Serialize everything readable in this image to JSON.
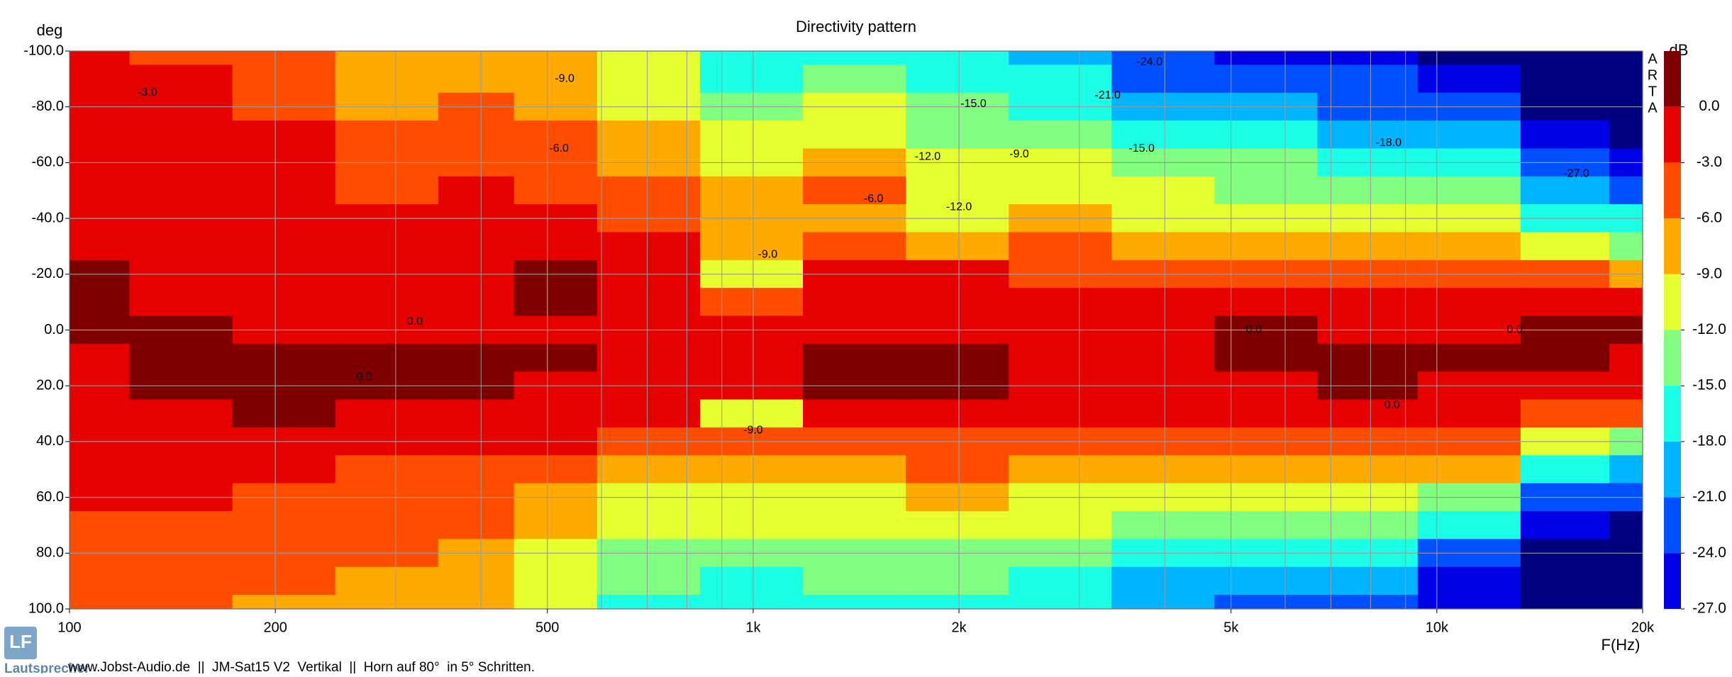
{
  "chart_data": {
    "type": "contour",
    "title": "Directivity pattern",
    "x_label": "F(Hz)",
    "y_label": "deg",
    "x_log": true,
    "xlim": [
      100,
      20000
    ],
    "xticks": [
      100,
      200,
      500,
      {
        "value": 1000,
        "label": "1k"
      },
      {
        "value": 2000,
        "label": "2k"
      },
      {
        "value": 5000,
        "label": "5k"
      },
      {
        "value": 10000,
        "label": "10k"
      },
      {
        "value": 20000,
        "label": "20k"
      }
    ],
    "x_minor_ticks": [
      300,
      400,
      600,
      700,
      800,
      900,
      3000,
      4000,
      6000,
      7000,
      8000,
      9000
    ],
    "ylim": [
      -100,
      100
    ],
    "y_inverted": true,
    "yticks": [
      {
        "value": -100,
        "label": "-100.0"
      },
      {
        "value": -80,
        "label": "-80.0"
      },
      {
        "value": -60,
        "label": "-60.0"
      },
      {
        "value": -40,
        "label": "-40.0"
      },
      {
        "value": -20,
        "label": "-20.0"
      },
      {
        "value": 0,
        "label": "0.0"
      },
      {
        "value": 20,
        "label": "20.0"
      },
      {
        "value": 40,
        "label": "40.0"
      },
      {
        "value": 60,
        "label": "60.0"
      },
      {
        "value": 80,
        "label": "80.0"
      },
      {
        "value": 100,
        "label": "100.0"
      }
    ],
    "grid": true,
    "x": [
      100,
      150,
      200,
      300,
      400,
      500,
      700,
      1000,
      1400,
      2000,
      2800,
      4000,
      5600,
      8000,
      11000,
      16000,
      20000
    ],
    "y": [
      -100,
      -90,
      -80,
      -70,
      -60,
      -50,
      -40,
      -30,
      -20,
      -10,
      0,
      10,
      20,
      30,
      40,
      50,
      60,
      70,
      80,
      90,
      100
    ],
    "z": [
      [
        -2.5,
        -2,
        -2,
        -1.5,
        -1.5,
        -1,
        -1,
        -1,
        0.5,
        0.5,
        0.5,
        -0.5,
        -1,
        -1,
        -1.5,
        -2,
        -2.5,
        -4,
        -4,
        -4.5,
        -4.5
      ],
      [
        -3.5,
        -3,
        -2.5,
        -2,
        -2,
        -1.5,
        -1.5,
        -1,
        -1,
        -0.5,
        0.5,
        0.5,
        0.5,
        -0.5,
        -1,
        -1.5,
        -2,
        -4,
        -4,
        -4.5,
        -5
      ],
      [
        -4,
        -3.5,
        -3.2,
        -3,
        -2.5,
        -2,
        -1.5,
        -1,
        -1,
        -0.5,
        -0.5,
        0.5,
        1,
        0.5,
        -1,
        -2,
        -3.5,
        -4,
        -4.5,
        -5,
        -7
      ],
      [
        -7,
        -6.5,
        -6.5,
        -5,
        -4,
        -3.5,
        -2,
        -1.5,
        -1,
        -1,
        -0.5,
        0.5,
        0.5,
        -0.5,
        -1.5,
        -3.5,
        -4,
        -4.5,
        -5,
        -6.5,
        -7
      ],
      [
        -7,
        -7,
        -6,
        -4,
        -3.5,
        -2.5,
        -2.5,
        -2,
        -1.5,
        -1,
        -0.5,
        0.5,
        0.5,
        -1,
        -2,
        -4,
        -5,
        -5.5,
        -6.5,
        -7.5,
        -8
      ],
      [
        -7.5,
        -7,
        -6.5,
        -5,
        -4,
        -3.5,
        -2.5,
        -1.5,
        0.5,
        0.5,
        -0.5,
        0.5,
        -0.5,
        -1.5,
        -3,
        -4.5,
        -6.5,
        -8,
        -9.5,
        -10.5,
        -11
      ],
      [
        -12,
        -11,
        -10,
        -9,
        -7.5,
        -6,
        -4.5,
        -3,
        -2,
        -1.5,
        -1,
        -1,
        -1.5,
        -2.5,
        -4,
        -7,
        -9.5,
        -11,
        -13,
        -15,
        -16
      ],
      [
        -17,
        -15.5,
        -13,
        -10.5,
        -9.5,
        -8,
        -7,
        -8,
        -9.5,
        -4,
        -2,
        -1.5,
        -2.5,
        -9.5,
        -6,
        -7.5,
        -10,
        -12,
        -14,
        -16,
        -17
      ],
      [
        -16,
        -14,
        -12,
        -10,
        -8.5,
        -5,
        -6.5,
        -4,
        -2.5,
        -2,
        -1.5,
        0.5,
        0.5,
        -2.5,
        -4,
        -8,
        -10,
        -11.5,
        -13,
        -15,
        -17
      ],
      [
        -18,
        -16.5,
        -14,
        -12.5,
        -11,
        -10,
        -10.5,
        -7.5,
        -2.5,
        -1.5,
        -1,
        0.5,
        0.5,
        -1.5,
        -3.5,
        -6,
        -8,
        -10.5,
        -12.5,
        -14,
        -15.5
      ],
      [
        -20,
        -18,
        -16,
        -12.5,
        -9.5,
        -10,
        -8,
        -6,
        -3.5,
        -2,
        -1,
        -1.5,
        -2,
        -3,
        -4.5,
        -7,
        -9.5,
        -12,
        -14,
        -16,
        -18
      ],
      [
        -23,
        -21.5,
        -19,
        -17,
        -15,
        -12,
        -9.5,
        -7,
        -4.5,
        -2,
        -1,
        -1,
        -1.5,
        -3,
        -5,
        -8,
        -10.5,
        -13,
        -16,
        -19,
        -21
      ],
      [
        -25,
        -23,
        -20,
        -18,
        -15,
        -12.5,
        -9.5,
        -6.5,
        -4,
        -2,
        0.5,
        0.5,
        -1,
        -2.5,
        -5,
        -8.5,
        -11,
        -14,
        -17,
        -20,
        -22.5
      ],
      [
        -26,
        -24,
        -21.5,
        -18.5,
        -16,
        -13,
        -10,
        -7,
        -4,
        -2,
        -1,
        0.5,
        0.5,
        -2,
        -5,
        -7.5,
        -10,
        -13,
        -17,
        -21,
        -24
      ],
      [
        -27.5,
        -26,
        -22.5,
        -19.5,
        -17,
        -14,
        -11,
        -8,
        -4.5,
        -2,
        -0.5,
        0.5,
        -1,
        -3,
        -5.5,
        -9,
        -12.5,
        -17,
        -22,
        -25,
        -27
      ],
      [
        -28,
        -28,
        -28,
        -26,
        -24,
        -21,
        -17,
        -12,
        -6,
        -2.5,
        0.5,
        0.5,
        -1.5,
        -4.5,
        -11,
        -17,
        -22.5,
        -25.5,
        -28,
        -28,
        -28
      ],
      [
        -28,
        -28,
        -28,
        -28,
        -26,
        -23,
        -17,
        -13,
        -7,
        -2.5,
        0.5,
        -1,
        -2,
        -5,
        -13,
        -19,
        -24,
        -27.5,
        -28,
        -28,
        -28
      ]
    ],
    "colorbar": {
      "label": "dB",
      "levels": [
        {
          "value": 0,
          "label": "0.0"
        },
        {
          "value": -3,
          "label": "-3.0"
        },
        {
          "value": -6,
          "label": "-6.0"
        },
        {
          "value": -9,
          "label": "-9.0"
        },
        {
          "value": -12,
          "label": "-12.0"
        },
        {
          "value": -15,
          "label": "-15.0"
        },
        {
          "value": -18,
          "label": "-18.0"
        },
        {
          "value": -21,
          "label": "-21.0"
        },
        {
          "value": -24,
          "label": "-24.0"
        },
        {
          "value": -27,
          "label": "-27.0"
        }
      ],
      "colors": [
        "#7f0000",
        "#e60000",
        "#ff4d00",
        "#ffaa00",
        "#e6ff2e",
        "#80ff80",
        "#1affe6",
        "#00b4ff",
        "#0050ff",
        "#0000e6"
      ],
      "under_color": "#000080"
    },
    "contour_labels": [
      {
        "x": 130,
        "y": -85,
        "value": -3,
        "label": "-3.0"
      },
      {
        "x": 530,
        "y": -90,
        "value": -9,
        "label": "-9.0"
      },
      {
        "x": 520,
        "y": -65,
        "value": -6,
        "label": "-6.0"
      },
      {
        "x": 1500,
        "y": -47,
        "value": -6,
        "label": "-6.0"
      },
      {
        "x": 1050,
        "y": -27,
        "value": -9,
        "label": "-9.0"
      },
      {
        "x": 1800,
        "y": -62,
        "value": -12,
        "label": "-12.0"
      },
      {
        "x": 2100,
        "y": -81,
        "value": -15,
        "label": "-15.0"
      },
      {
        "x": 2450,
        "y": -63,
        "value": -9,
        "label": "-9.0"
      },
      {
        "x": 2000,
        "y": -44,
        "value": -12,
        "label": "-12.0"
      },
      {
        "x": 3300,
        "y": -84,
        "value": -21,
        "label": "-21.0"
      },
      {
        "x": 3800,
        "y": -96,
        "value": -24,
        "label": "-24.0"
      },
      {
        "x": 3700,
        "y": -65,
        "value": -15,
        "label": "-15.0"
      },
      {
        "x": 8500,
        "y": -67,
        "value": -18,
        "label": "-18.0"
      },
      {
        "x": 16000,
        "y": -56,
        "value": -27,
        "label": "-27.0"
      },
      {
        "x": 320,
        "y": -3,
        "value": 0,
        "label": "0.0"
      },
      {
        "x": 270,
        "y": 17,
        "value": 0,
        "label": "0.0"
      },
      {
        "x": 1000,
        "y": 36,
        "value": -9,
        "label": "-9.0"
      },
      {
        "x": 5400,
        "y": 0,
        "value": 0,
        "label": "0.0"
      },
      {
        "x": 8600,
        "y": 27,
        "value": 0,
        "label": "0.0"
      },
      {
        "x": 13000,
        "y": 0,
        "value": 0,
        "label": "0.0"
      }
    ]
  },
  "watermark": {
    "side_text": [
      "A",
      "R",
      "T",
      "A"
    ],
    "logo": "LF",
    "logo_text": "Lautsprecher"
  },
  "footer": "www.Jobst-Audio.de  ||  JM-Sat15 V2  Vertikal  ||  Horn auf 80°  in 5° Schritten."
}
